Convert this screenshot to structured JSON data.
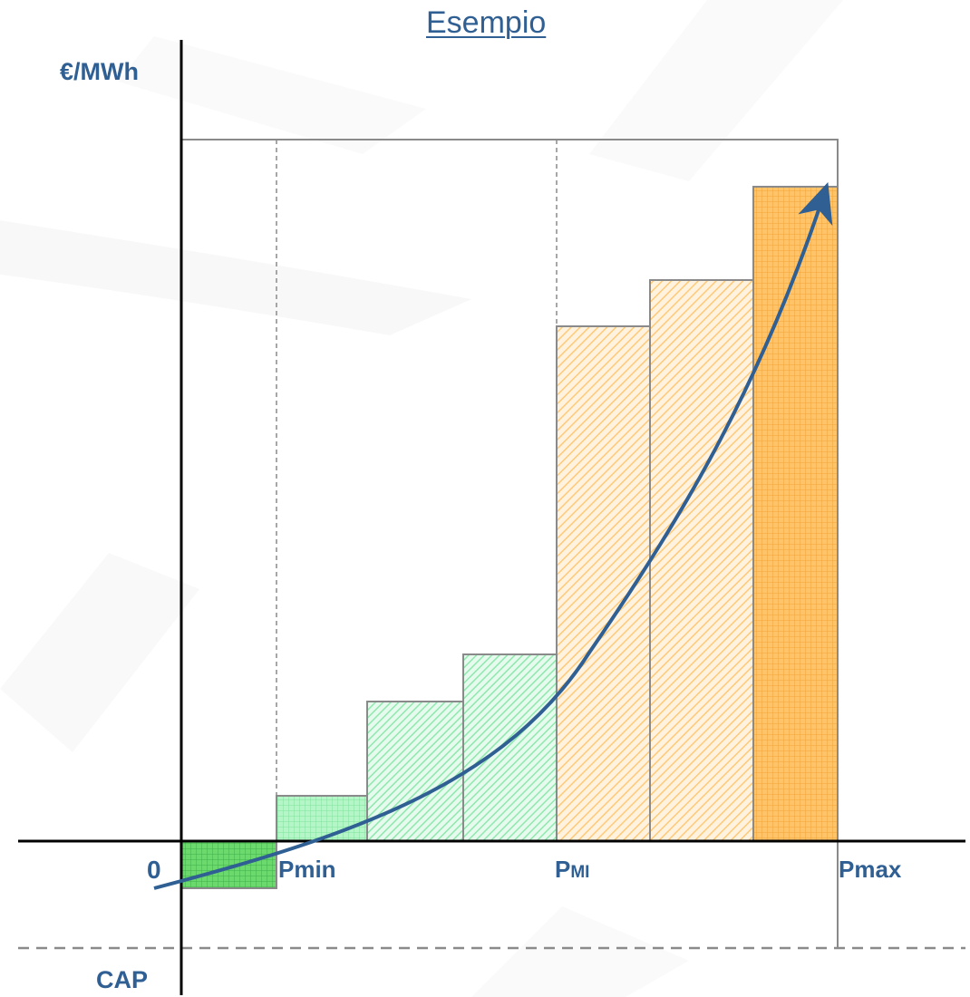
{
  "title": "Esempio",
  "y_axis_label": "€/MWh",
  "x_labels": {
    "origin": "0",
    "pmin": "Pmin",
    "pmi_p": "P",
    "pmi_sub": "MI",
    "pmax": "Pmax"
  },
  "cap_label": "CAP",
  "colors": {
    "label": "#2f5f93",
    "arrow": "#2f5f93",
    "green_dark": "#5fd35f",
    "green_light": "#9ff0b8",
    "orange": "#ffb84d",
    "bar_border": "#8a8a8a"
  },
  "chart_data": {
    "type": "bar",
    "description_units": "relative price level per power band",
    "bands": [
      {
        "index": 1,
        "value": -1,
        "group": "below-pmin",
        "fill": "green-grid"
      },
      {
        "index": 2,
        "value": 1,
        "group": "pmin-pmi",
        "fill": "green-grid"
      },
      {
        "index": 3,
        "value": 3,
        "group": "pmin-pmi",
        "fill": "green-hatch"
      },
      {
        "index": 4,
        "value": 4,
        "group": "pmin-pmi",
        "fill": "green-hatch"
      },
      {
        "index": 5,
        "value": 11,
        "group": "pmi-pmax",
        "fill": "orange-hatch"
      },
      {
        "index": 6,
        "value": 12,
        "group": "pmi-pmax",
        "fill": "orange-hatch"
      },
      {
        "index": 7,
        "value": 14,
        "group": "pmi-pmax",
        "fill": "orange-grid"
      }
    ],
    "ymax_box": 15,
    "cap_level": -2.3
  }
}
